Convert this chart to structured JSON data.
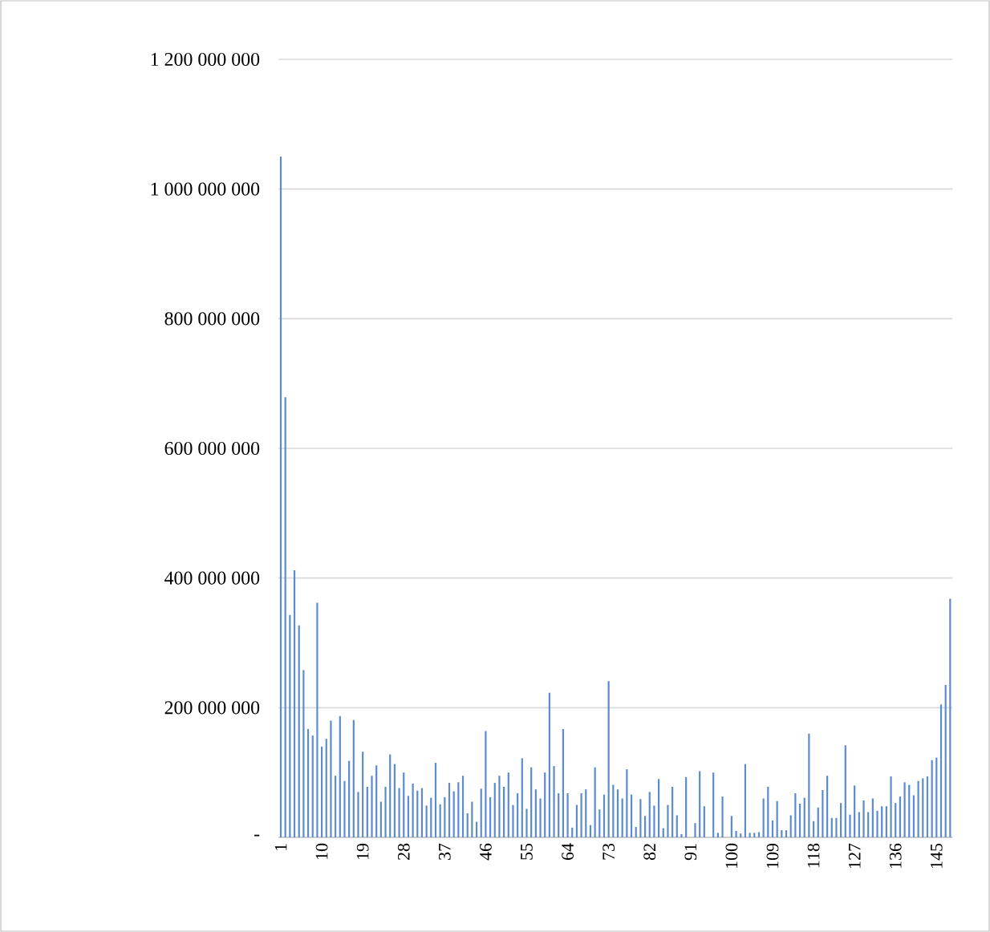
{
  "chart_data": {
    "type": "bar",
    "categories": [
      "1",
      null,
      null,
      null,
      null,
      null,
      null,
      null,
      null,
      "10",
      null,
      null,
      null,
      null,
      null,
      null,
      null,
      null,
      "19",
      null,
      null,
      null,
      null,
      null,
      null,
      null,
      null,
      "28",
      null,
      null,
      null,
      null,
      null,
      null,
      null,
      null,
      "37",
      null,
      null,
      null,
      null,
      null,
      null,
      null,
      null,
      "46",
      null,
      null,
      null,
      null,
      null,
      null,
      null,
      null,
      "55",
      null,
      null,
      null,
      null,
      null,
      null,
      null,
      null,
      "64",
      null,
      null,
      null,
      null,
      null,
      null,
      null,
      null,
      "73",
      null,
      null,
      null,
      null,
      null,
      null,
      null,
      null,
      "82",
      null,
      null,
      null,
      null,
      null,
      null,
      null,
      null,
      "91",
      null,
      null,
      null,
      null,
      null,
      null,
      null,
      null,
      "100",
      null,
      null,
      null,
      null,
      null,
      null,
      null,
      null,
      "109",
      null,
      null,
      null,
      null,
      null,
      null,
      null,
      null,
      "118",
      null,
      null,
      null,
      null,
      null,
      null,
      null,
      null,
      "127",
      null,
      null,
      null,
      null,
      null,
      null,
      null,
      null,
      "136",
      null,
      null,
      null,
      null,
      null,
      null,
      null,
      null,
      "145",
      null,
      null,
      null
    ],
    "values": [
      1050000000,
      679000000,
      343000000,
      412000000,
      327000000,
      258000000,
      167000000,
      157000000,
      362000000,
      140000000,
      152000000,
      180000000,
      95000000,
      187000000,
      87000000,
      118000000,
      181000000,
      70000000,
      132000000,
      78000000,
      95000000,
      111000000,
      55000000,
      78000000,
      128000000,
      113000000,
      76000000,
      100000000,
      64000000,
      83000000,
      72000000,
      76000000,
      49000000,
      61000000,
      115000000,
      51000000,
      62000000,
      84000000,
      71000000,
      85000000,
      95000000,
      37000000,
      55000000,
      24000000,
      75000000,
      164000000,
      62000000,
      84000000,
      95000000,
      78000000,
      100000000,
      50000000,
      68000000,
      122000000,
      44000000,
      108000000,
      74000000,
      60000000,
      100000000,
      223000000,
      110000000,
      68000000,
      167000000,
      68000000,
      15000000,
      50000000,
      68000000,
      74000000,
      19000000,
      108000000,
      43000000,
      66000000,
      241000000,
      81000000,
      74000000,
      60000000,
      105000000,
      66000000,
      16000000,
      59000000,
      33000000,
      70000000,
      49000000,
      90000000,
      14000000,
      50000000,
      78000000,
      34000000,
      5000000,
      93000000,
      null,
      22000000,
      102000000,
      48000000,
      null,
      100000000,
      7000000,
      63000000,
      null,
      33000000,
      10000000,
      6000000,
      113000000,
      7000000,
      7000000,
      8000000,
      60000000,
      78000000,
      26000000,
      56000000,
      11000000,
      11000000,
      34000000,
      68000000,
      52000000,
      61000000,
      160000000,
      25000000,
      46000000,
      73000000,
      95000000,
      30000000,
      30000000,
      53000000,
      142000000,
      35000000,
      80000000,
      39000000,
      57000000,
      39000000,
      60000000,
      41000000,
      48000000,
      48000000,
      94000000,
      53000000,
      63000000,
      85000000,
      81000000,
      65000000,
      87000000,
      91000000,
      94000000,
      119000000,
      123000000,
      205000000,
      235000000,
      368000000
    ],
    "color": "#5b8bd0",
    "ylim": [
      0,
      1200000000
    ],
    "yticks": [
      {
        "value": 0,
        "label": "-"
      },
      {
        "value": 200000000,
        "label": "200 000 000"
      },
      {
        "value": 400000000,
        "label": "400 000 000"
      },
      {
        "value": 600000000,
        "label": "600 000 000"
      },
      {
        "value": 800000000,
        "label": "800 000 000"
      },
      {
        "value": 1000000000,
        "label": "1 000 000 000"
      },
      {
        "value": 1200000000,
        "label": "1 200 000 000"
      }
    ],
    "grid": "y"
  }
}
